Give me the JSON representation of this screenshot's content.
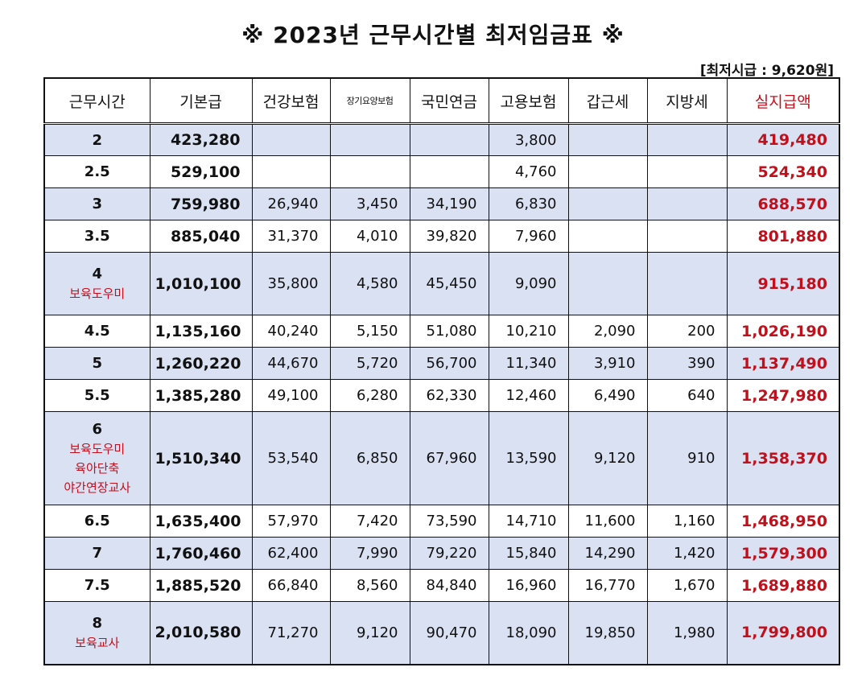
{
  "title": "※ 2023년 근무시간별 최저임금표 ※",
  "note": "[최저시급 : 9,620원]",
  "headers": [
    "근무시간",
    "기본급",
    "건강보험",
    "장기요양보험",
    "국민연금",
    "고용보험",
    "갑근세",
    "지방세",
    "실지급액"
  ],
  "rows": [
    {
      "hours": "2",
      "notes": [],
      "base": "423,280",
      "health": "",
      "ltc": "",
      "pension": "",
      "employ": "3,800",
      "income_tax": "",
      "local_tax": "",
      "net": "419,480"
    },
    {
      "hours": "2.5",
      "notes": [],
      "base": "529,100",
      "health": "",
      "ltc": "",
      "pension": "",
      "employ": "4,760",
      "income_tax": "",
      "local_tax": "",
      "net": "524,340"
    },
    {
      "hours": "3",
      "notes": [],
      "base": "759,980",
      "health": "26,940",
      "ltc": "3,450",
      "pension": "34,190",
      "employ": "6,830",
      "income_tax": "",
      "local_tax": "",
      "net": "688,570"
    },
    {
      "hours": "3.5",
      "notes": [],
      "base": "885,040",
      "health": "31,370",
      "ltc": "4,010",
      "pension": "39,820",
      "employ": "7,960",
      "income_tax": "",
      "local_tax": "",
      "net": "801,880"
    },
    {
      "hours": "4",
      "notes": [
        "보육도우미"
      ],
      "base": "1,010,100",
      "health": "35,800",
      "ltc": "4,580",
      "pension": "45,450",
      "employ": "9,090",
      "income_tax": "",
      "local_tax": "",
      "net": "915,180"
    },
    {
      "hours": "4.5",
      "notes": [],
      "base": "1,135,160",
      "health": "40,240",
      "ltc": "5,150",
      "pension": "51,080",
      "employ": "10,210",
      "income_tax": "2,090",
      "local_tax": "200",
      "net": "1,026,190"
    },
    {
      "hours": "5",
      "notes": [],
      "base": "1,260,220",
      "health": "44,670",
      "ltc": "5,720",
      "pension": "56,700",
      "employ": "11,340",
      "income_tax": "3,910",
      "local_tax": "390",
      "net": "1,137,490"
    },
    {
      "hours": "5.5",
      "notes": [],
      "base": "1,385,280",
      "health": "49,100",
      "ltc": "6,280",
      "pension": "62,330",
      "employ": "12,460",
      "income_tax": "6,490",
      "local_tax": "640",
      "net": "1,247,980"
    },
    {
      "hours": "6",
      "notes": [
        "보육도우미",
        "육아단축",
        "야간연장교사"
      ],
      "base": "1,510,340",
      "health": "53,540",
      "ltc": "6,850",
      "pension": "67,960",
      "employ": "13,590",
      "income_tax": "9,120",
      "local_tax": "910",
      "net": "1,358,370"
    },
    {
      "hours": "6.5",
      "notes": [],
      "base": "1,635,400",
      "health": "57,970",
      "ltc": "7,420",
      "pension": "73,590",
      "employ": "14,710",
      "income_tax": "11,600",
      "local_tax": "1,160",
      "net": "1,468,950"
    },
    {
      "hours": "7",
      "notes": [],
      "base": "1,760,460",
      "health": "62,400",
      "ltc": "7,990",
      "pension": "79,220",
      "employ": "15,840",
      "income_tax": "14,290",
      "local_tax": "1,420",
      "net": "1,579,300"
    },
    {
      "hours": "7.5",
      "notes": [],
      "base": "1,885,520",
      "health": "66,840",
      "ltc": "8,560",
      "pension": "84,840",
      "employ": "16,960",
      "income_tax": "16,770",
      "local_tax": "1,670",
      "net": "1,689,880"
    },
    {
      "hours": "8",
      "notes": [
        "보육교사"
      ],
      "base": "2,010,580",
      "health": "71,270",
      "ltc": "9,120",
      "pension": "90,470",
      "employ": "18,090",
      "income_tax": "19,850",
      "local_tax": "1,980",
      "net": "1,799,800"
    }
  ],
  "colors": {
    "row_alt": "#d9e1f3",
    "net_text": "#c0101c",
    "note_text": "#c0101c"
  }
}
